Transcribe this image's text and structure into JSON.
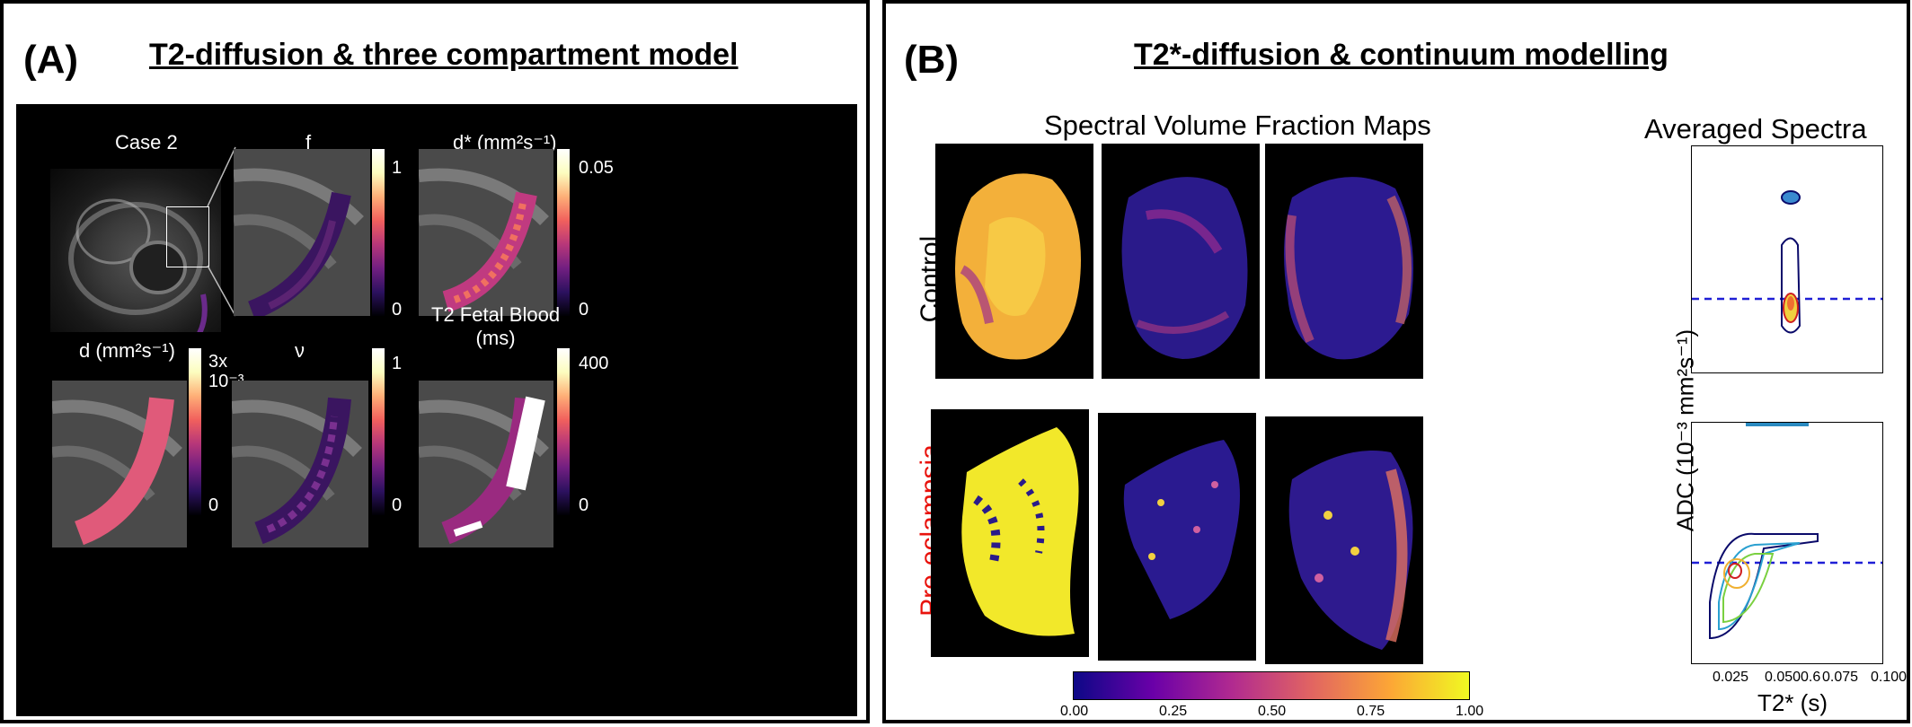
{
  "panel_a": {
    "letter": "(A)",
    "title": "T2-diffusion & three compartment model",
    "case_label": "Case 2",
    "maps": [
      {
        "label": "f",
        "cbar_max": "1",
        "cbar_min": "0"
      },
      {
        "label": "d* (mm²s⁻¹)",
        "cbar_max": "0.05",
        "cbar_min": "0"
      },
      {
        "label": "d (mm²s⁻¹)",
        "cbar_max": "3x\n10⁻³",
        "cbar_min": "0"
      },
      {
        "label": "ν",
        "cbar_max": "1",
        "cbar_min": "0"
      },
      {
        "label": "T2 Fetal Blood\n(ms)",
        "cbar_max": "400",
        "cbar_min": "0"
      }
    ]
  },
  "panel_b": {
    "letter": "(B)",
    "title": "T2*-diffusion & continuum modelling",
    "maps_title": "Spectral Volume Fraction Maps",
    "spectra_title": "Averaged Spectra",
    "row_control": "Control",
    "row_preeclampsia": "Pre-eclampsia",
    "row_preeclampsia_color": "#e8120c",
    "colorbar_ticks": [
      "0.00",
      "0.25",
      "0.50",
      "0.75",
      "1.00"
    ],
    "spectra_xlabel": "T2* (s)",
    "spectra_ylabel": "ADC (10⁻³ mm²s⁻¹)",
    "spectra_xticks": [
      "0.025",
      "0.050",
      "0.075",
      "0.100"
    ],
    "spectra_xticks_overlap": "0.6",
    "dashed_line_color": "#1f1fd6"
  }
}
